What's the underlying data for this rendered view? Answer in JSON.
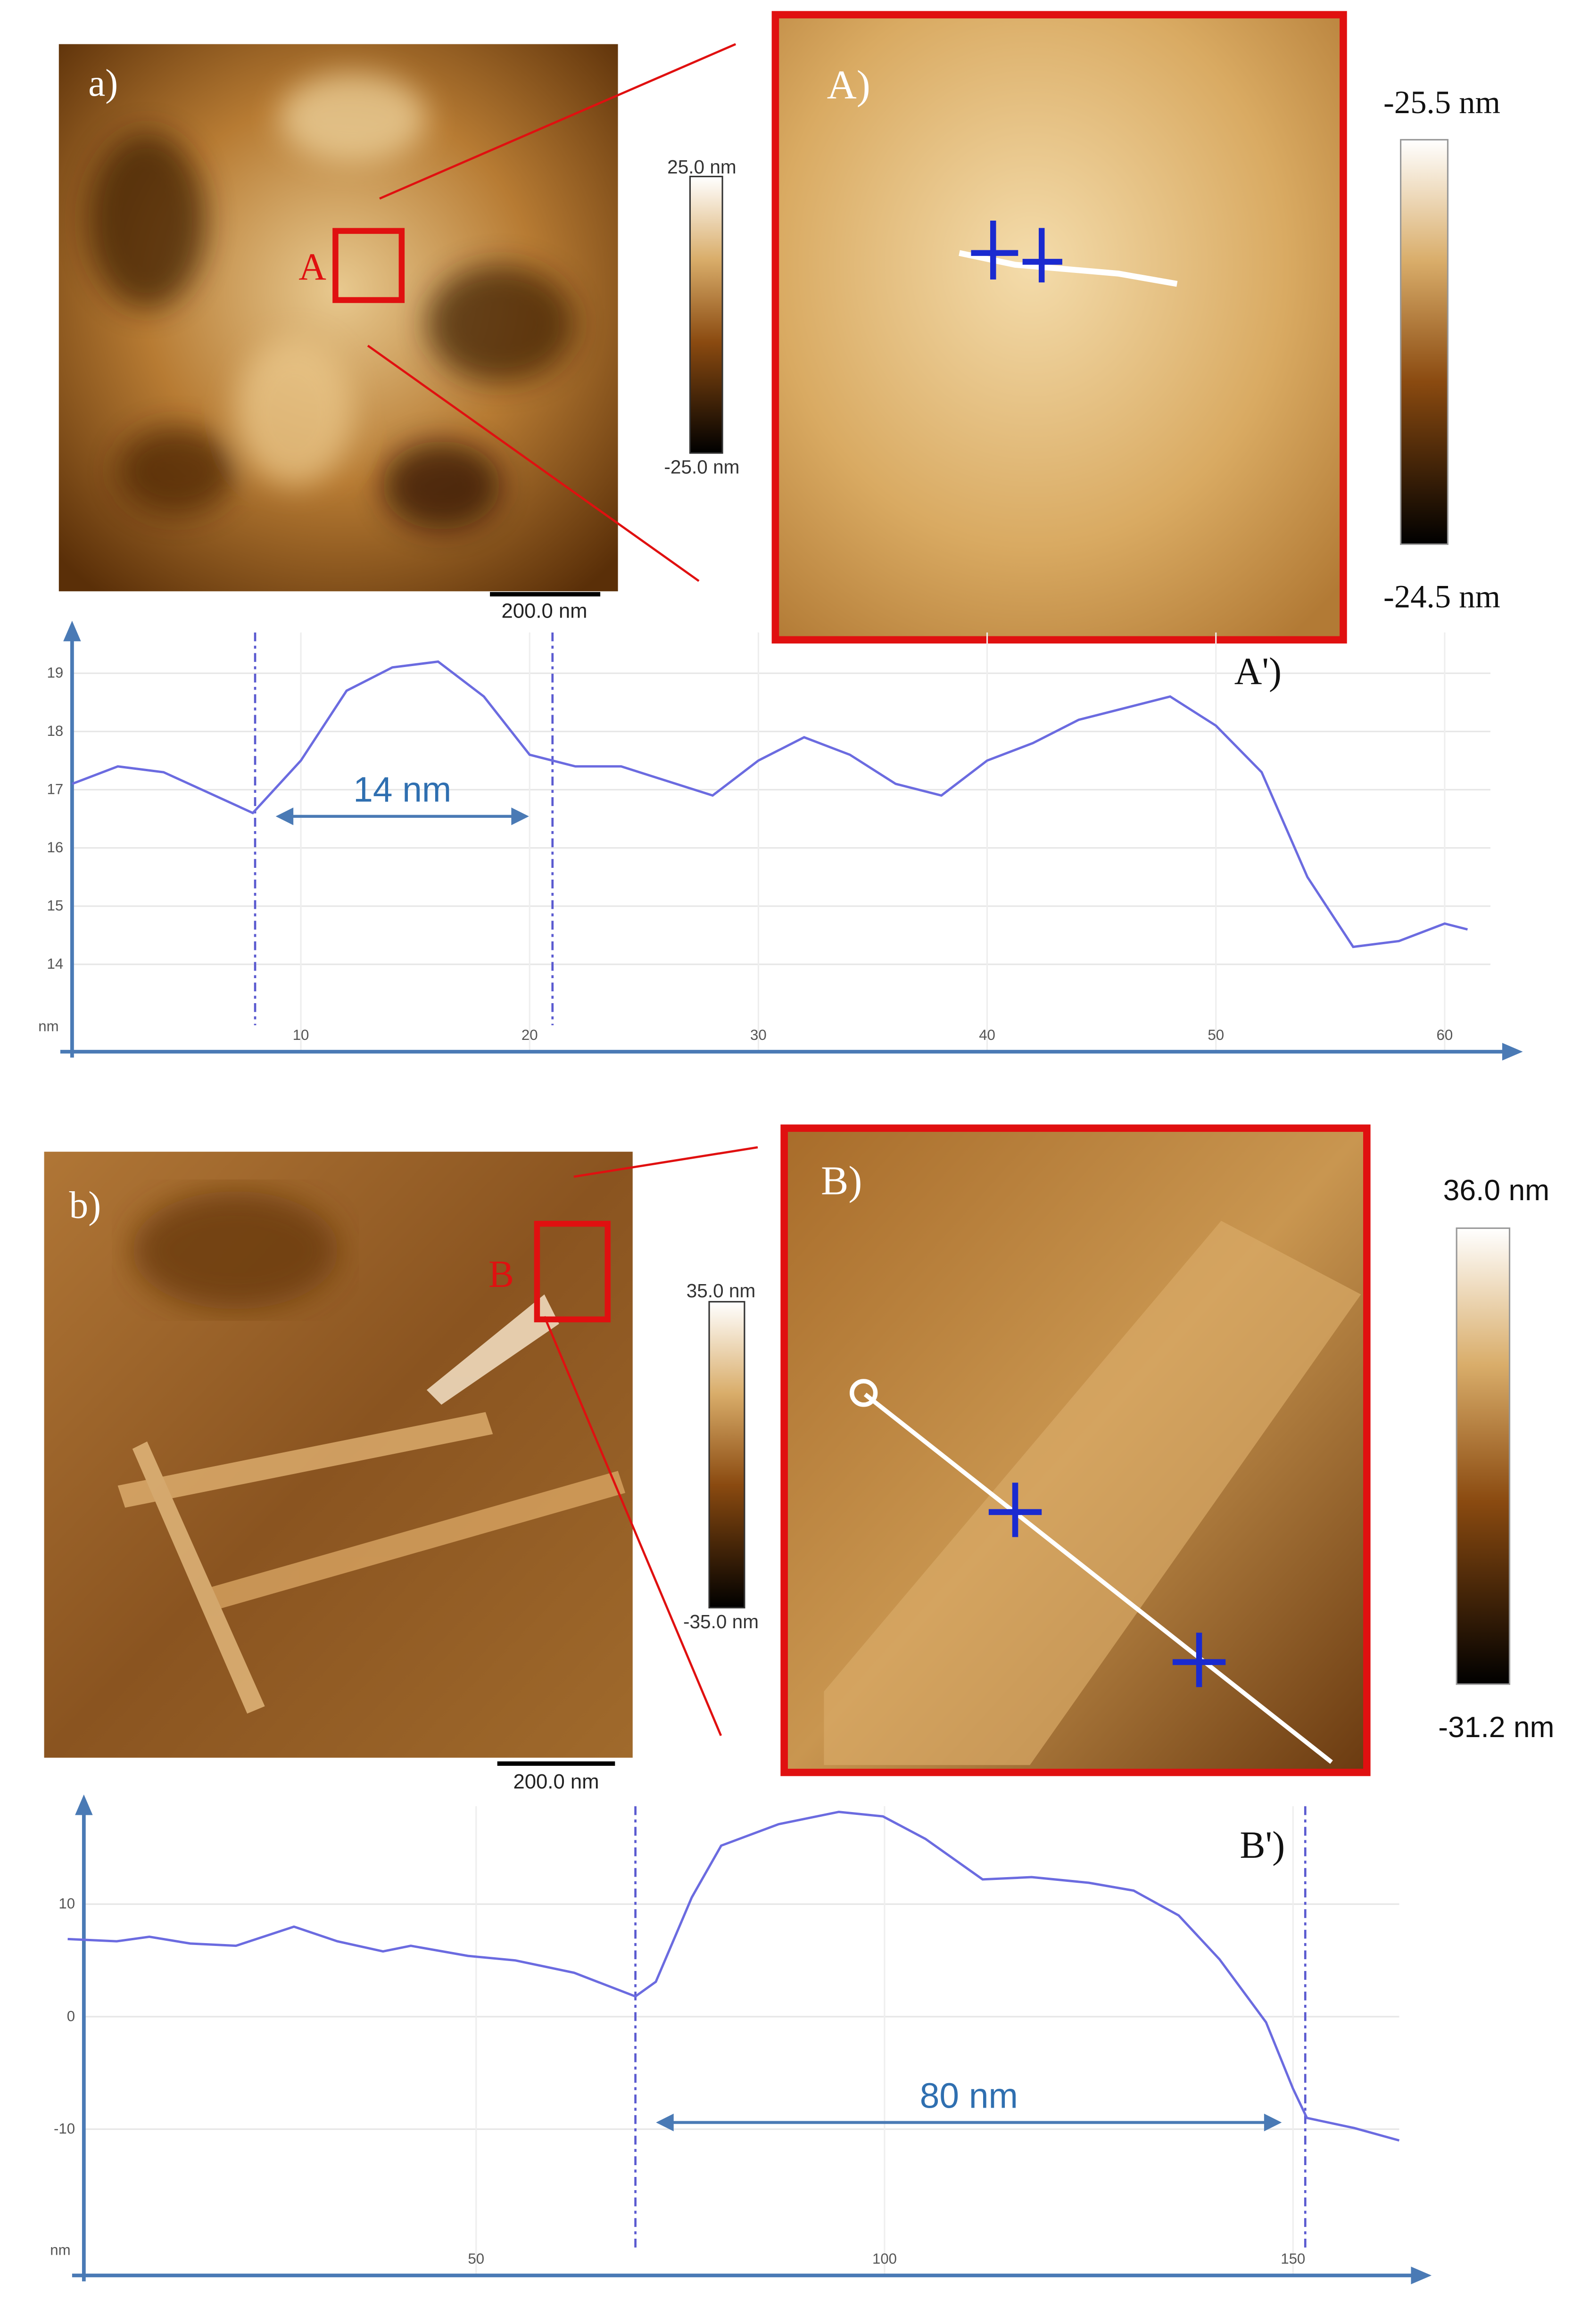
{
  "chart_data": [
    {
      "type": "line",
      "label": "A')",
      "annotation": "14 nm",
      "y_label": "nm",
      "x": [
        0,
        2,
        4,
        7.9,
        10,
        12,
        14,
        16,
        18,
        20,
        22,
        24,
        28,
        30,
        32,
        34,
        36,
        38,
        40,
        42,
        44,
        46,
        48,
        50,
        52,
        54,
        56,
        58,
        60,
        61
      ],
      "values": [
        17.1,
        17.4,
        17.3,
        16.6,
        17.5,
        18.7,
        19.1,
        19.2,
        18.6,
        17.6,
        17.4,
        17.4,
        16.9,
        17.5,
        17.9,
        17.6,
        17.1,
        16.9,
        17.5,
        17.8,
        18.2,
        18.4,
        18.6,
        18.1,
        17.3,
        15.5,
        14.3,
        14.4,
        14.7,
        14.6
      ],
      "color": "#6b6be0",
      "cursors": [
        8,
        21
      ],
      "xlim": [
        0,
        62
      ],
      "ylim": [
        12.5,
        19.7
      ],
      "xticks": [
        10,
        20,
        30,
        40,
        50,
        60
      ],
      "yticks": [
        14,
        15,
        16,
        17,
        18,
        19
      ],
      "grid": true
    },
    {
      "type": "line",
      "label": "B')",
      "annotation": "80 nm",
      "y_label": "nm",
      "x": [
        0,
        6,
        10,
        15,
        20.6,
        27.7,
        33,
        38.6,
        42,
        49,
        54.8,
        62,
        69.5,
        72,
        76.4,
        80,
        87,
        94.4,
        99.8,
        105,
        112,
        118,
        125,
        130.5,
        136,
        141,
        146.7,
        150,
        151.7,
        157.5,
        163
      ],
      "values": [
        6.9,
        6.7,
        7.1,
        6.5,
        6.3,
        8.0,
        6.7,
        5.8,
        6.3,
        5.4,
        5.0,
        3.9,
        1.8,
        3.1,
        10.6,
        15.2,
        17.1,
        18.2,
        17.8,
        15.8,
        12.2,
        12.4,
        11.9,
        11.2,
        9.0,
        5.1,
        -0.5,
        -6.4,
        -9.0,
        -9.9,
        -11.0
      ],
      "color": "#6b6be0",
      "cursors": [
        69.5,
        151.5
      ],
      "xlim": [
        0,
        163
      ],
      "ylim": [
        -23,
        18.7
      ],
      "xticks": [
        50,
        100,
        150
      ],
      "yticks": [
        10,
        0,
        -10
      ],
      "grid": true
    }
  ],
  "panels": [
    {
      "label": "a)",
      "region": "A",
      "zoom_label": "A)",
      "scale_bar": "200.0 nm",
      "small_bar": [
        "25.0 nm",
        "-25.0 nm"
      ],
      "large_bar": [
        "-25.5 nm",
        "-24.5 nm"
      ]
    },
    {
      "label": "b)",
      "region": "B",
      "zoom_label": "B)",
      "scale_bar": "200.0 nm",
      "small_bar": [
        "35.0 nm",
        "-35.0 nm"
      ],
      "large_bar": [
        "36.0 nm",
        "-31.2 nm"
      ]
    }
  ]
}
